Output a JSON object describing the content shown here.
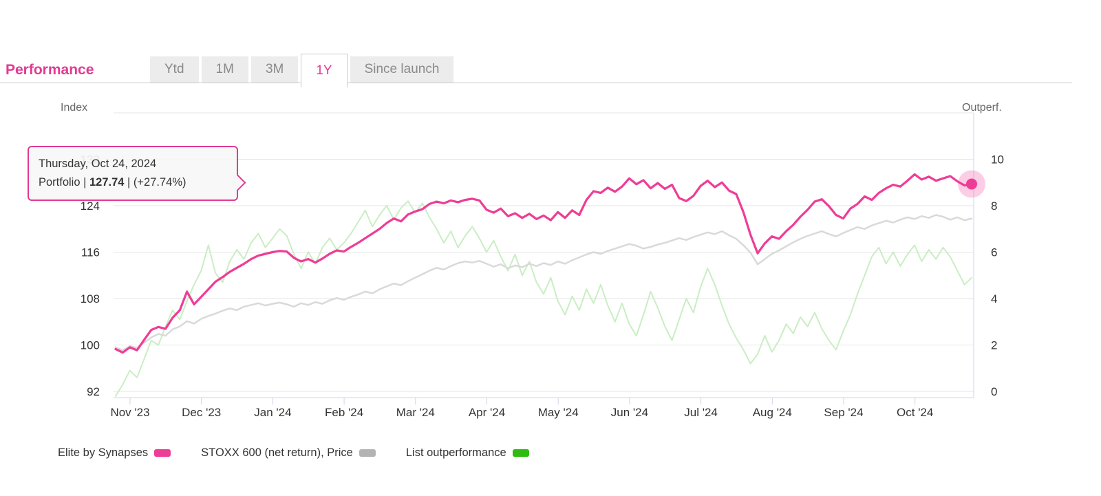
{
  "header": {
    "title": "Performance",
    "tabs": [
      {
        "label": "Ytd",
        "active": false
      },
      {
        "label": "1M",
        "active": false
      },
      {
        "label": "3M",
        "active": false
      },
      {
        "label": "1Y",
        "active": true
      },
      {
        "label": "Since launch",
        "active": false
      }
    ]
  },
  "tooltip": {
    "date": "Thursday, Oct 24, 2024",
    "prefix": "Portfolio | ",
    "value": "127.74",
    "suffix": " | (+27.74%)"
  },
  "legend": [
    {
      "label": "Elite by Synapses",
      "color": "#ee3d96"
    },
    {
      "label": "STOXX 600 (net return), Price",
      "color": "#b3b3b3"
    },
    {
      "label": "List outperformance",
      "color": "#2ebc0e"
    }
  ],
  "colors": {
    "accent_pink": "#e23a92",
    "grid": "#e6e6e6",
    "axis_line": "#ccd6eb",
    "tab_text": "#8a8a8a",
    "axis_title_text": "#666666"
  },
  "chart_data": {
    "type": "line",
    "title": "Performance 1Y",
    "x_axis": {
      "tick_labels": [
        "Nov '23",
        "Dec '23",
        "Jan '24",
        "Feb '24",
        "Mar '24",
        "Apr '24",
        "May '24",
        "Jun '24",
        "Jul '24",
        "Aug '24",
        "Sep '24",
        "Oct '24"
      ]
    },
    "y_axis_left": {
      "title": "Index",
      "ticks": [
        92,
        100,
        108,
        116,
        124,
        132
      ],
      "grid_ticks": [
        92,
        100,
        108,
        116,
        124,
        132,
        140
      ],
      "range": [
        90.9,
        140
      ]
    },
    "y_axis_right": {
      "title": "Outperf.",
      "ticks": [
        0,
        2,
        4,
        6,
        8,
        10
      ],
      "range": [
        -0.27,
        12
      ]
    },
    "last_point": {
      "series": "Elite by Synapses",
      "date_label": "Thursday, Oct 24, 2024",
      "value": 127.74,
      "change_pct": "+27.74%"
    },
    "series": [
      {
        "name": "List outperformance",
        "axis": "right",
        "color": "#c9eec2",
        "legend_color": "#2ebc0e",
        "width": 2,
        "values": [
          -0.2,
          0.3,
          0.9,
          0.6,
          1.4,
          2.2,
          2.0,
          2.8,
          3.5,
          3.1,
          3.9,
          4.6,
          5.2,
          6.3,
          5.1,
          4.7,
          5.6,
          6.1,
          5.7,
          6.4,
          6.8,
          6.2,
          6.6,
          7.0,
          6.7,
          5.9,
          5.3,
          6.0,
          5.5,
          6.2,
          6.6,
          6.1,
          6.4,
          6.8,
          7.3,
          7.8,
          7.1,
          7.6,
          8.0,
          7.4,
          7.9,
          8.2,
          7.7,
          8.1,
          7.5,
          7.0,
          6.4,
          6.9,
          6.2,
          6.7,
          7.1,
          6.6,
          6.0,
          6.5,
          5.8,
          5.2,
          5.9,
          5.0,
          5.6,
          4.7,
          4.2,
          4.9,
          3.9,
          3.3,
          4.1,
          3.5,
          4.4,
          3.8,
          4.6,
          3.7,
          3.0,
          3.8,
          2.9,
          2.4,
          3.3,
          4.3,
          3.6,
          2.8,
          2.2,
          3.1,
          4.0,
          3.4,
          4.5,
          5.3,
          4.6,
          3.7,
          2.9,
          2.3,
          1.8,
          1.2,
          1.6,
          2.4,
          1.7,
          2.2,
          2.9,
          2.5,
          3.2,
          2.8,
          3.4,
          2.7,
          2.2,
          1.8,
          2.6,
          3.3,
          4.2,
          5.0,
          5.8,
          6.2,
          5.5,
          6.0,
          5.4,
          5.9,
          6.3,
          5.6,
          6.1,
          5.7,
          6.2,
          5.8,
          5.2,
          4.6,
          4.9
        ]
      },
      {
        "name": "STOXX 600 (net return), Price",
        "axis": "left",
        "color": "#d9d9d9",
        "legend_color": "#b3b3b3",
        "width": 2.5,
        "values": [
          99.6,
          99.1,
          99.8,
          99.5,
          100.4,
          101.3,
          101.9,
          101.6,
          102.7,
          103.2,
          104.1,
          103.7,
          104.5,
          105.0,
          105.4,
          105.9,
          106.3,
          106.0,
          106.6,
          106.9,
          107.2,
          106.8,
          107.1,
          107.3,
          107.0,
          106.6,
          107.2,
          106.9,
          107.4,
          107.1,
          107.7,
          108.1,
          107.8,
          108.3,
          108.7,
          109.2,
          108.9,
          109.6,
          110.1,
          110.6,
          110.3,
          111.0,
          111.6,
          112.2,
          112.8,
          113.3,
          113.0,
          113.6,
          114.1,
          114.4,
          114.2,
          114.5,
          114.0,
          113.5,
          113.9,
          113.2,
          113.7,
          113.4,
          114.0,
          113.6,
          114.1,
          113.8,
          114.4,
          114.0,
          114.6,
          115.1,
          115.6,
          116.0,
          115.7,
          116.2,
          116.6,
          117.0,
          117.4,
          117.1,
          116.6,
          116.9,
          117.3,
          117.6,
          118.0,
          118.4,
          118.1,
          118.6,
          119.0,
          119.4,
          119.1,
          119.6,
          118.9,
          118.3,
          117.2,
          115.9,
          113.9,
          114.8,
          115.7,
          116.3,
          117.0,
          117.7,
          118.3,
          118.8,
          119.2,
          119.6,
          119.1,
          118.7,
          119.3,
          119.8,
          120.3,
          120.0,
          120.6,
          121.0,
          121.4,
          121.1,
          121.6,
          122.0,
          121.7,
          122.2,
          121.9,
          122.4,
          122.1,
          121.6,
          122.0,
          121.5,
          121.8
        ]
      },
      {
        "name": "Elite by Synapses",
        "axis": "left",
        "color": "#ee3d96",
        "legend_color": "#ee3d96",
        "width": 3.25,
        "marker_last": true,
        "values": [
          99.3,
          98.7,
          99.6,
          99.1,
          100.9,
          102.6,
          103.1,
          102.8,
          104.7,
          106.0,
          109.2,
          107.0,
          108.3,
          109.6,
          110.9,
          111.7,
          112.6,
          113.3,
          114.0,
          114.8,
          115.4,
          115.7,
          116.0,
          116.2,
          116.1,
          115.0,
          114.4,
          114.8,
          114.2,
          114.9,
          115.7,
          116.3,
          116.1,
          116.9,
          117.6,
          118.4,
          119.2,
          120.0,
          121.0,
          121.8,
          121.3,
          122.5,
          123.0,
          123.4,
          124.3,
          124.7,
          124.4,
          124.9,
          124.6,
          125.0,
          125.2,
          124.9,
          123.3,
          122.8,
          123.5,
          122.2,
          122.7,
          121.9,
          122.6,
          121.7,
          122.3,
          121.5,
          122.9,
          121.9,
          123.2,
          122.4,
          125.0,
          126.5,
          126.2,
          127.1,
          126.4,
          127.3,
          128.7,
          127.7,
          128.4,
          127.0,
          127.9,
          126.9,
          127.6,
          125.3,
          124.8,
          125.7,
          127.4,
          128.3,
          127.2,
          128.0,
          126.6,
          126.0,
          122.9,
          119.0,
          115.8,
          117.5,
          118.7,
          118.3,
          119.6,
          120.7,
          122.1,
          123.3,
          124.7,
          125.1,
          123.9,
          122.4,
          121.8,
          123.5,
          124.3,
          125.6,
          125.0,
          126.2,
          127.0,
          127.6,
          127.3,
          128.3,
          129.4,
          128.5,
          129.0,
          128.3,
          128.7,
          129.1,
          128.2,
          127.5,
          127.74
        ]
      }
    ]
  }
}
